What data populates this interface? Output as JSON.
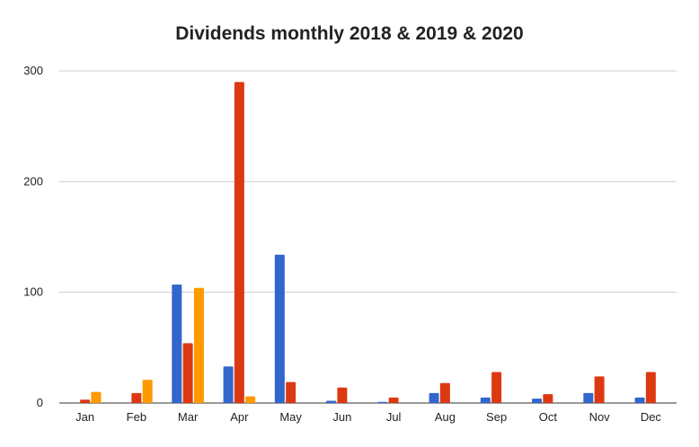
{
  "chart_data": {
    "type": "bar",
    "title": "Dividends monthly 2018 & 2019 & 2020",
    "xlabel": "",
    "ylabel": "",
    "categories": [
      "Jan",
      "Feb",
      "Mar",
      "Apr",
      "May",
      "Jun",
      "Jul",
      "Aug",
      "Sep",
      "Oct",
      "Nov",
      "Dec"
    ],
    "series": [
      {
        "color": "#3366cc",
        "values": [
          0,
          0,
          107,
          33,
          134,
          2,
          1,
          9,
          5,
          4,
          9,
          5
        ]
      },
      {
        "color": "#dc3912",
        "values": [
          3,
          9,
          54,
          290,
          19,
          14,
          5,
          18,
          28,
          8,
          24,
          28
        ]
      },
      {
        "color": "#ff9900",
        "values": [
          10,
          21,
          104,
          6,
          0,
          0,
          0,
          0,
          0,
          0,
          0,
          0
        ]
      }
    ],
    "yticks": [
      0,
      100,
      200,
      300
    ],
    "ylim": [
      0,
      300
    ],
    "grid": true,
    "legend": "none"
  }
}
